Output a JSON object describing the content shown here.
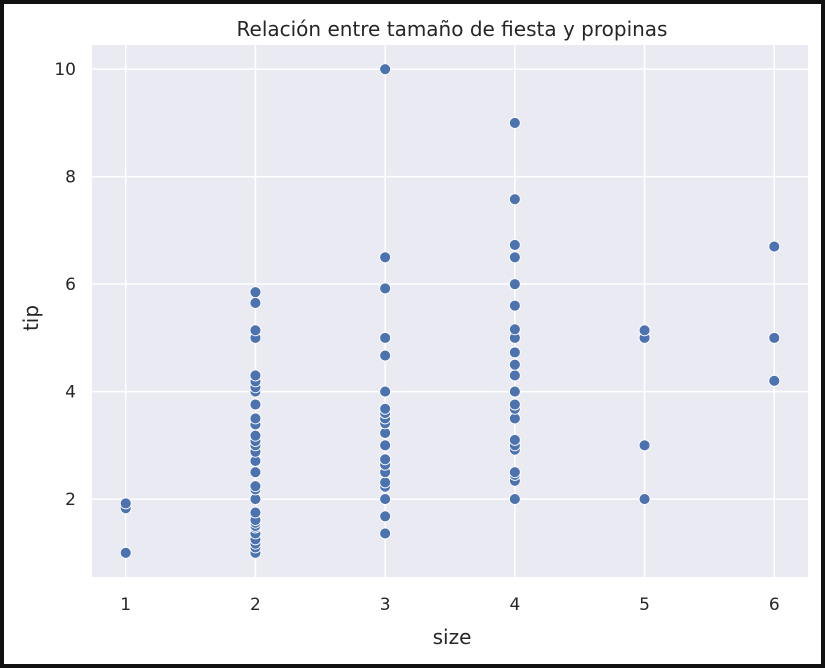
{
  "chart_data": {
    "type": "scatter",
    "title": "Relación entre tamaño de fiesta y propinas",
    "xlabel": "size",
    "ylabel": "tip",
    "xlim": [
      0.74,
      6.26
    ],
    "ylim": [
      0.55,
      10.45
    ],
    "xticks": [
      "1",
      "2",
      "3",
      "4",
      "5",
      "6"
    ],
    "yticks": [
      "2",
      "4",
      "6",
      "8",
      "10"
    ],
    "grid": true,
    "background": "#EAEAF2",
    "grid_color": "#FFFFFF",
    "point_color": "#4C72B0",
    "point_edge_color": "#FFFFFF",
    "series": [
      {
        "points": [
          [
            1,
            1.0
          ],
          [
            1,
            1.83
          ],
          [
            1,
            1.92
          ],
          [
            2,
            1.0
          ],
          [
            2,
            1.1
          ],
          [
            2,
            1.17
          ],
          [
            2,
            1.25
          ],
          [
            2,
            1.36
          ],
          [
            2,
            1.47
          ],
          [
            2,
            1.5
          ],
          [
            2,
            1.56
          ],
          [
            2,
            1.61
          ],
          [
            2,
            1.75
          ],
          [
            2,
            2.0
          ],
          [
            2,
            2.18
          ],
          [
            2,
            2.24
          ],
          [
            2,
            2.5
          ],
          [
            2,
            2.71
          ],
          [
            2,
            2.88
          ],
          [
            2,
            3.0
          ],
          [
            2,
            3.08
          ],
          [
            2,
            3.18
          ],
          [
            2,
            3.39
          ],
          [
            2,
            3.5
          ],
          [
            2,
            3.76
          ],
          [
            2,
            4.0
          ],
          [
            2,
            4.08
          ],
          [
            2,
            4.19
          ],
          [
            2,
            4.3
          ],
          [
            2,
            5.0
          ],
          [
            2,
            5.14
          ],
          [
            2,
            5.65
          ],
          [
            2,
            5.85
          ],
          [
            3,
            1.36
          ],
          [
            3,
            1.68
          ],
          [
            3,
            2.0
          ],
          [
            3,
            2.23
          ],
          [
            3,
            2.31
          ],
          [
            3,
            2.5
          ],
          [
            3,
            2.64
          ],
          [
            3,
            2.74
          ],
          [
            3,
            3.0
          ],
          [
            3,
            3.23
          ],
          [
            3,
            3.41
          ],
          [
            3,
            3.5
          ],
          [
            3,
            3.6
          ],
          [
            3,
            3.68
          ],
          [
            3,
            4.0
          ],
          [
            3,
            4.67
          ],
          [
            3,
            5.0
          ],
          [
            3,
            5.92
          ],
          [
            3,
            6.5
          ],
          [
            3,
            10.0
          ],
          [
            4,
            2.0
          ],
          [
            4,
            2.34
          ],
          [
            4,
            2.45
          ],
          [
            4,
            2.5
          ],
          [
            4,
            2.92
          ],
          [
            4,
            3.0
          ],
          [
            4,
            3.1
          ],
          [
            4,
            3.5
          ],
          [
            4,
            3.68
          ],
          [
            4,
            3.76
          ],
          [
            4,
            4.0
          ],
          [
            4,
            4.3
          ],
          [
            4,
            4.5
          ],
          [
            4,
            4.73
          ],
          [
            4,
            5.0
          ],
          [
            4,
            5.16
          ],
          [
            4,
            5.6
          ],
          [
            4,
            6.0
          ],
          [
            4,
            6.5
          ],
          [
            4,
            6.73
          ],
          [
            4,
            7.58
          ],
          [
            4,
            9.0
          ],
          [
            5,
            2.0
          ],
          [
            5,
            3.0
          ],
          [
            5,
            5.0
          ],
          [
            5,
            5.14
          ],
          [
            6,
            4.2
          ],
          [
            6,
            5.0
          ],
          [
            6,
            6.7
          ]
        ]
      }
    ]
  }
}
